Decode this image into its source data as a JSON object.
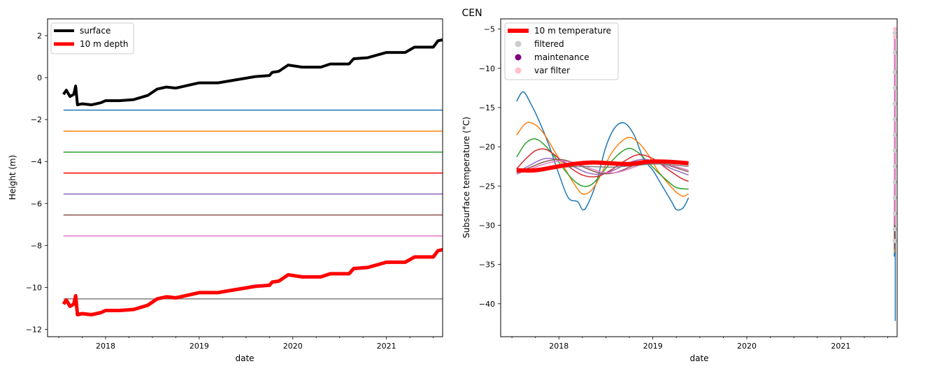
{
  "figure": {
    "title": "CEN"
  },
  "chart_data": [
    {
      "type": "line",
      "title": "",
      "xlabel": "date",
      "ylabel": "Height (m)",
      "xlim": [
        2017.38,
        2021.6
      ],
      "ylim": [
        -12.35,
        2.8
      ],
      "x_ticks": [
        2018,
        2019,
        2020,
        2021
      ],
      "x_tick_labels": [
        "2018",
        "2019",
        "2020",
        "2021"
      ],
      "y_ticks": [
        2,
        0,
        -2,
        -4,
        -6,
        -8,
        -10,
        -12
      ],
      "y_tick_labels": [
        "2",
        "0",
        "−2",
        "−4",
        "−6",
        "−8",
        "−10",
        "−12"
      ],
      "legend": {
        "placement": "top-left",
        "entries": [
          "surface",
          "10 m depth"
        ]
      },
      "grid": false,
      "series": [
        {
          "name": "surface",
          "color": "#000000",
          "width": 4,
          "smooth": false,
          "x": [
            2017.55,
            2017.58,
            2017.62,
            2017.66,
            2017.68,
            2017.7,
            2017.75,
            2017.85,
            2017.95,
            2018.0,
            2018.15,
            2018.3,
            2018.45,
            2018.55,
            2018.65,
            2018.75,
            2018.9,
            2019.0,
            2019.2,
            2019.4,
            2019.6,
            2019.75,
            2019.78,
            2019.85,
            2019.95,
            2020.1,
            2020.3,
            2020.4,
            2020.6,
            2020.65,
            2020.8,
            2021.0,
            2021.2,
            2021.3,
            2021.5,
            2021.55,
            2021.6
          ],
          "y": [
            -0.8,
            -0.6,
            -0.9,
            -0.8,
            -0.4,
            -1.3,
            -1.25,
            -1.3,
            -1.2,
            -1.1,
            -1.1,
            -1.05,
            -0.85,
            -0.55,
            -0.45,
            -0.5,
            -0.35,
            -0.25,
            -0.25,
            -0.1,
            0.05,
            0.1,
            0.25,
            0.3,
            0.6,
            0.5,
            0.5,
            0.65,
            0.65,
            0.9,
            0.95,
            1.2,
            1.2,
            1.45,
            1.45,
            1.75,
            1.8
          ]
        },
        {
          "name": "10 m depth",
          "color": "#ff0000",
          "width": 5,
          "smooth": false,
          "x": [
            2017.55,
            2017.58,
            2017.62,
            2017.66,
            2017.68,
            2017.7,
            2017.75,
            2017.85,
            2017.95,
            2018.0,
            2018.15,
            2018.3,
            2018.45,
            2018.55,
            2018.65,
            2018.75,
            2018.9,
            2019.0,
            2019.2,
            2019.4,
            2019.6,
            2019.75,
            2019.78,
            2019.85,
            2019.95,
            2020.1,
            2020.3,
            2020.4,
            2020.6,
            2020.65,
            2020.8,
            2021.0,
            2021.2,
            2021.3,
            2021.5,
            2021.55,
            2021.6
          ],
          "y": [
            -10.8,
            -10.6,
            -10.9,
            -10.8,
            -10.4,
            -11.3,
            -11.25,
            -11.3,
            -11.2,
            -11.1,
            -11.1,
            -11.05,
            -10.85,
            -10.55,
            -10.45,
            -10.5,
            -10.35,
            -10.25,
            -10.25,
            -10.1,
            -9.95,
            -9.9,
            -9.75,
            -9.7,
            -9.4,
            -9.5,
            -9.5,
            -9.35,
            -9.35,
            -9.1,
            -9.05,
            -8.8,
            -8.8,
            -8.55,
            -8.55,
            -8.25,
            -8.2
          ]
        },
        {
          "name": "",
          "color": "#1f77b4",
          "width": 1.5,
          "smooth": false,
          "x": [
            2017.55,
            2021.6
          ],
          "y": [
            -1.55,
            -1.55
          ]
        },
        {
          "name": "",
          "color": "#ff7f0e",
          "width": 1.5,
          "smooth": false,
          "x": [
            2017.55,
            2021.6
          ],
          "y": [
            -2.55,
            -2.55
          ]
        },
        {
          "name": "",
          "color": "#2ca02c",
          "width": 1.5,
          "smooth": false,
          "x": [
            2017.55,
            2021.6
          ],
          "y": [
            -3.55,
            -3.55
          ]
        },
        {
          "name": "",
          "color": "#ff0000",
          "width": 1.5,
          "smooth": false,
          "x": [
            2017.55,
            2021.6
          ],
          "y": [
            -4.55,
            -4.55
          ]
        },
        {
          "name": "",
          "color": "#9467bd",
          "width": 1.5,
          "smooth": false,
          "x": [
            2017.55,
            2021.6
          ],
          "y": [
            -5.55,
            -5.55
          ]
        },
        {
          "name": "",
          "color": "#8c564b",
          "width": 1.5,
          "smooth": false,
          "x": [
            2017.55,
            2021.6
          ],
          "y": [
            -6.55,
            -6.55
          ]
        },
        {
          "name": "",
          "color": "#e377c2",
          "width": 1.5,
          "smooth": false,
          "x": [
            2017.55,
            2021.6
          ],
          "y": [
            -7.55,
            -7.55
          ]
        },
        {
          "name": "",
          "color": "#7f7f7f",
          "width": 1.5,
          "smooth": false,
          "x": [
            2017.55,
            2021.6
          ],
          "y": [
            -10.55,
            -10.55
          ]
        }
      ]
    },
    {
      "type": "line",
      "title": "",
      "xlabel": "date",
      "ylabel": "Subsurface temperature (°C)",
      "xlim": [
        2017.38,
        2021.6
      ],
      "ylim": [
        -44.2,
        -3.7
      ],
      "x_ticks": [
        2018,
        2019,
        2020,
        2021
      ],
      "x_tick_labels": [
        "2018",
        "2019",
        "2020",
        "2021"
      ],
      "y_ticks": [
        -5,
        -10,
        -15,
        -20,
        -25,
        -30,
        -35,
        -40
      ],
      "y_tick_labels": [
        "−5",
        "−10",
        "−15",
        "−20",
        "−25",
        "−30",
        "−35",
        "−40"
      ],
      "legend": {
        "placement": "top-left",
        "entries": [
          "10 m temperature",
          "filtered",
          "maintenance",
          "var filter"
        ]
      },
      "grid": false,
      "series": [
        {
          "name": "",
          "color": "#1f77b4",
          "width": 1.5,
          "smooth": true,
          "x": [
            2017.55,
            2017.62,
            2017.7,
            2017.8,
            2017.9,
            2018.0,
            2018.1,
            2018.2,
            2018.25,
            2018.3,
            2018.4,
            2018.5,
            2018.6,
            2018.7,
            2018.8,
            2018.9,
            2019.0,
            2019.1,
            2019.2,
            2019.25,
            2019.32,
            2019.38
          ],
          "y": [
            -14.2,
            -13.0,
            -14.5,
            -17.0,
            -20.0,
            -23.5,
            -26.5,
            -27.0,
            -28.0,
            -27.5,
            -24.5,
            -20.0,
            -17.5,
            -17.0,
            -18.5,
            -21.5,
            -23.0,
            -25.0,
            -27.0,
            -28.0,
            -27.8,
            -26.5
          ]
        },
        {
          "name": "",
          "color": "#ff7f0e",
          "width": 1.5,
          "smooth": true,
          "x": [
            2017.55,
            2017.65,
            2017.75,
            2017.85,
            2017.95,
            2018.05,
            2018.15,
            2018.25,
            2018.35,
            2018.45,
            2018.55,
            2018.65,
            2018.75,
            2018.85,
            2018.95,
            2019.05,
            2019.15,
            2019.25,
            2019.32,
            2019.38
          ],
          "y": [
            -18.5,
            -17.0,
            -17.2,
            -18.5,
            -20.5,
            -22.5,
            -24.5,
            -26.0,
            -25.5,
            -23.5,
            -21.0,
            -19.5,
            -18.8,
            -19.5,
            -21.0,
            -23.0,
            -24.5,
            -25.8,
            -26.3,
            -26.0
          ]
        },
        {
          "name": "",
          "color": "#2ca02c",
          "width": 1.5,
          "smooth": true,
          "x": [
            2017.55,
            2017.65,
            2017.75,
            2017.85,
            2017.95,
            2018.05,
            2018.15,
            2018.25,
            2018.35,
            2018.45,
            2018.55,
            2018.65,
            2018.75,
            2018.85,
            2018.95,
            2019.05,
            2019.15,
            2019.25,
            2019.38
          ],
          "y": [
            -21.3,
            -19.5,
            -19.0,
            -19.8,
            -21.2,
            -22.8,
            -24.2,
            -25.0,
            -24.8,
            -23.5,
            -22.0,
            -20.8,
            -20.2,
            -20.8,
            -22.0,
            -23.2,
            -24.3,
            -25.2,
            -25.4
          ]
        },
        {
          "name": "",
          "color": "#d62728",
          "width": 1.5,
          "smooth": true,
          "x": [
            2017.55,
            2017.65,
            2017.75,
            2017.85,
            2017.95,
            2018.1,
            2018.25,
            2018.4,
            2018.55,
            2018.7,
            2018.85,
            2019.0,
            2019.15,
            2019.3,
            2019.38
          ],
          "y": [
            -22.8,
            -21.5,
            -20.5,
            -20.3,
            -21.0,
            -22.5,
            -23.6,
            -23.8,
            -23.0,
            -21.8,
            -21.0,
            -21.5,
            -22.8,
            -24.0,
            -24.4
          ]
        },
        {
          "name": "",
          "color": "#9467bd",
          "width": 1.5,
          "smooth": true,
          "x": [
            2017.55,
            2017.7,
            2017.85,
            2018.0,
            2018.15,
            2018.3,
            2018.45,
            2018.6,
            2018.75,
            2018.9,
            2019.05,
            2019.2,
            2019.38
          ],
          "y": [
            -23.3,
            -22.3,
            -21.5,
            -21.7,
            -22.5,
            -23.3,
            -23.5,
            -22.9,
            -22.0,
            -21.6,
            -22.0,
            -22.8,
            -23.6
          ]
        },
        {
          "name": "",
          "color": "#8c564b",
          "width": 1.5,
          "smooth": true,
          "x": [
            2017.55,
            2017.7,
            2017.85,
            2018.0,
            2018.15,
            2018.3,
            2018.45,
            2018.6,
            2018.75,
            2018.9,
            2019.05,
            2019.2,
            2019.38
          ],
          "y": [
            -23.3,
            -22.6,
            -21.9,
            -21.6,
            -22.0,
            -22.8,
            -23.4,
            -23.3,
            -22.6,
            -22.0,
            -22.0,
            -22.5,
            -23.2
          ]
        },
        {
          "name": "",
          "color": "#e377c2",
          "width": 1.5,
          "smooth": true,
          "x": [
            2017.55,
            2017.7,
            2017.85,
            2018.0,
            2018.15,
            2018.3,
            2018.45,
            2018.6,
            2018.75,
            2018.9,
            2019.05,
            2019.2,
            2019.38
          ],
          "y": [
            -23.5,
            -22.8,
            -22.2,
            -21.8,
            -22.0,
            -22.6,
            -23.2,
            -23.3,
            -22.8,
            -22.2,
            -22.1,
            -22.4,
            -23.0
          ]
        },
        {
          "name": "",
          "color": "#7f7f7f",
          "width": 1.5,
          "smooth": true,
          "x": [
            2017.55,
            2017.8,
            2018.05,
            2018.3,
            2018.55,
            2018.8,
            2019.05,
            2019.38
          ],
          "y": [
            -23.3,
            -22.9,
            -22.6,
            -22.5,
            -22.6,
            -22.4,
            -22.2,
            -22.5
          ]
        },
        {
          "name": "10 m temperature",
          "color": "#ff0000",
          "width": 6,
          "smooth": true,
          "x": [
            2017.55,
            2017.75,
            2017.95,
            2018.15,
            2018.35,
            2018.55,
            2018.75,
            2018.95,
            2019.15,
            2019.38
          ],
          "y": [
            -23.0,
            -23.0,
            -22.6,
            -22.2,
            -22.0,
            -22.1,
            -22.2,
            -21.9,
            -21.9,
            -22.1
          ]
        },
        {
          "name": "",
          "color": "#1f77b4",
          "width": 1.5,
          "smooth": false,
          "x": [
            2021.57,
            2021.57,
            2021.58,
            2021.58,
            2021.58
          ],
          "y": [
            -34.0,
            -30.0,
            -15.0,
            -10.0,
            -42.2
          ]
        },
        {
          "name": "",
          "color": "#8c564b",
          "width": 2,
          "smooth": false,
          "x": [
            2021.575,
            2021.575
          ],
          "y": [
            -6.0,
            -33.0
          ]
        },
        {
          "name": "",
          "color": "#ff7f0e",
          "width": 1.5,
          "smooth": false,
          "x": [
            2021.572,
            2021.572
          ],
          "y": [
            -27.0,
            -33.5
          ]
        },
        {
          "name": "",
          "color": "#e377c2",
          "width": 2,
          "smooth": false,
          "x": [
            2021.578,
            2021.578
          ],
          "y": [
            -5.0,
            -30.0
          ]
        }
      ],
      "markers": [
        {
          "name": "filtered",
          "color": "#cccccc",
          "x": [
            2021.575,
            2021.575,
            2021.575,
            2021.575,
            2021.575,
            2021.575,
            2021.575,
            2021.575,
            2021.575,
            2021.575,
            2021.575,
            2021.575,
            2021.575,
            2021.575
          ],
          "y": [
            -5.5,
            -8.0,
            -10.5,
            -12.5,
            -14.5,
            -16.5,
            -18.5,
            -20.5,
            -22.5,
            -24.5,
            -26.5,
            -28.5,
            -30.5,
            -32.0
          ]
        },
        {
          "name": "maintenance",
          "color": "#800080",
          "x": [],
          "y": []
        },
        {
          "name": "var filter",
          "color": "#ffc0cb",
          "x": [
            2021.578,
            2021.578
          ],
          "y": [
            -5.0,
            -6.0
          ]
        }
      ]
    }
  ]
}
